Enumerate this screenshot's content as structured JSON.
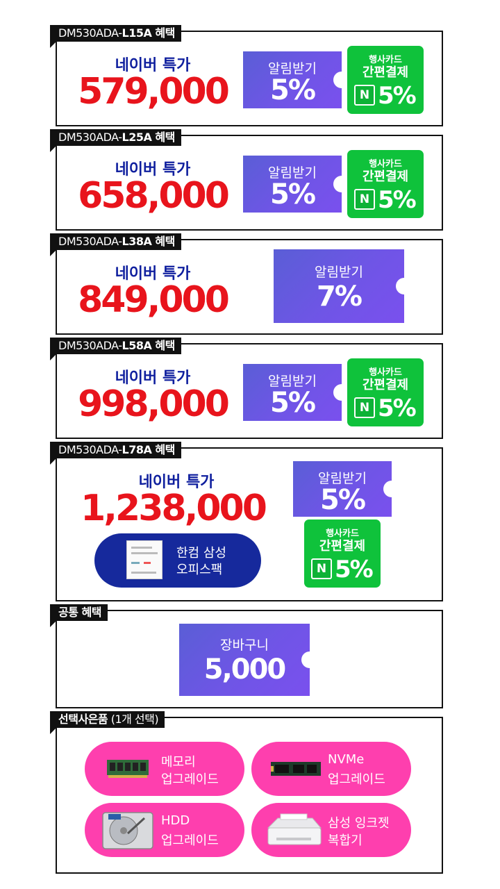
{
  "sections": [
    {
      "tag_prefix": "DM530ADA-",
      "tag_model": "L15A 혜택",
      "naver_label": "네이버 특가",
      "price": "579,000",
      "alarm_label": "알림받기",
      "alarm_pct": "5%",
      "card_l1": "행사카드",
      "card_l2": "간편결제",
      "card_icon": "N",
      "card_pct": "5%"
    },
    {
      "tag_prefix": "DM530ADA-",
      "tag_model": "L25A 혜택",
      "naver_label": "네이버 특가",
      "price": "658,000",
      "alarm_label": "알림받기",
      "alarm_pct": "5%",
      "card_l1": "행사카드",
      "card_l2": "간편결제",
      "card_icon": "N",
      "card_pct": "5%"
    },
    {
      "tag_prefix": "DM530ADA-",
      "tag_model": "L38A 혜택",
      "naver_label": "네이버 특가",
      "price": "849,000",
      "alarm_label": "알림받기",
      "alarm_pct": "7%"
    },
    {
      "tag_prefix": "DM530ADA-",
      "tag_model": "L58A 혜택",
      "naver_label": "네이버 특가",
      "price": "998,000",
      "alarm_label": "알림받기",
      "alarm_pct": "5%",
      "card_l1": "행사카드",
      "card_l2": "간편결제",
      "card_icon": "N",
      "card_pct": "5%"
    },
    {
      "tag_prefix": "DM530ADA-",
      "tag_model": "L78A 혜택",
      "naver_label": "네이버 특가",
      "price": "1,238,000",
      "alarm_label": "알림받기",
      "alarm_pct": "5%",
      "card_l1": "행사카드",
      "card_l2": "간편결제",
      "card_icon": "N",
      "card_pct": "5%",
      "office_l1": "한컴 삼성",
      "office_l2": "오피스팩"
    }
  ],
  "common": {
    "tag": "공통 혜택",
    "coupon_label": "장바구니",
    "coupon_value": "5,000"
  },
  "gifts": {
    "tag_bold": "선택사은품",
    "tag_note": "(1개 선택)",
    "items": [
      {
        "l1": "메모리",
        "l2": "업그레이드"
      },
      {
        "l1": "NVMe",
        "l2": "업그레이드"
      },
      {
        "l1": "HDD",
        "l2": "업그레이드"
      },
      {
        "l1": "삼성 잉크젯",
        "l2": "복합기"
      }
    ]
  },
  "colors": {
    "price": "#e8141c",
    "naver": "#0f1f9e",
    "coupon": "#6a58e2",
    "card": "#0fc23b",
    "gift": "#fe3fae",
    "office": "#16299c"
  }
}
